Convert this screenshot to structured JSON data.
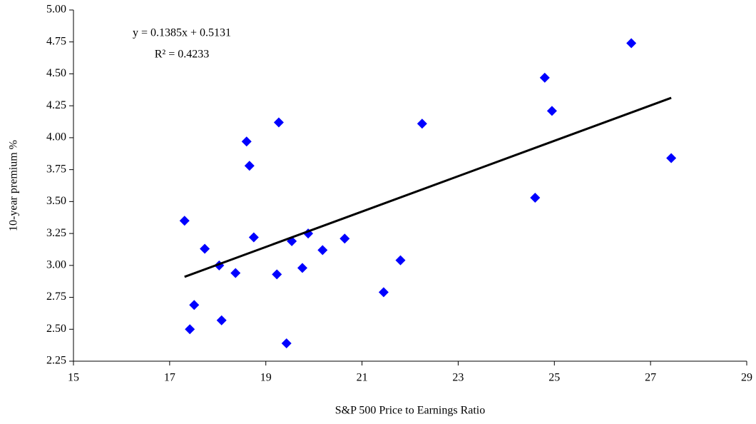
{
  "chart_data": {
    "type": "scatter",
    "x_label": "S&P 500 Price to Earnings Ratio",
    "y_label": "10-year premium %",
    "equation": "y = 0.1385x + 0.5131",
    "r_squared": "R² = 0.4233",
    "trendline": {
      "slope": 0.1385,
      "intercept": 0.5131,
      "color": "#000000"
    },
    "color": "#0000ff",
    "x": [
      17.31,
      17.42,
      17.51,
      17.73,
      18.03,
      18.08,
      18.37,
      18.6,
      18.66,
      18.75,
      19.23,
      19.27,
      19.43,
      19.54,
      19.76,
      19.88,
      20.18,
      20.64,
      21.45,
      21.8,
      22.25,
      24.6,
      24.8,
      24.95,
      26.6,
      27.43
    ],
    "values": [
      3.35,
      2.5,
      2.69,
      3.13,
      3.0,
      2.57,
      2.94,
      3.97,
      3.78,
      3.22,
      2.93,
      4.12,
      2.39,
      3.19,
      2.98,
      3.25,
      3.12,
      3.21,
      2.79,
      3.04,
      4.11,
      3.53,
      4.47,
      4.21,
      4.74,
      3.84
    ],
    "xlim": [
      15,
      29
    ],
    "xticks": [
      15,
      17,
      19,
      21,
      23,
      25,
      27,
      29
    ],
    "ylim": [
      2.25,
      5
    ],
    "yticks": [
      {
        "value": 2.25,
        "label": "2.25"
      },
      {
        "value": 2.5,
        "label": "2.50"
      },
      {
        "value": 2.75,
        "label": "2.75"
      },
      {
        "value": 3,
        "label": "3.00"
      },
      {
        "value": 3.25,
        "label": "3.25"
      },
      {
        "value": 3.5,
        "label": "3.50"
      },
      {
        "value": 3.75,
        "label": "3.75"
      },
      {
        "value": 4,
        "label": "4.00"
      },
      {
        "value": 4.25,
        "label": "4.25"
      },
      {
        "value": 4.5,
        "label": "4.50"
      },
      {
        "value": 4.75,
        "label": "4.75"
      },
      {
        "value": 5,
        "label": "5.00"
      }
    ],
    "grid": false
  }
}
